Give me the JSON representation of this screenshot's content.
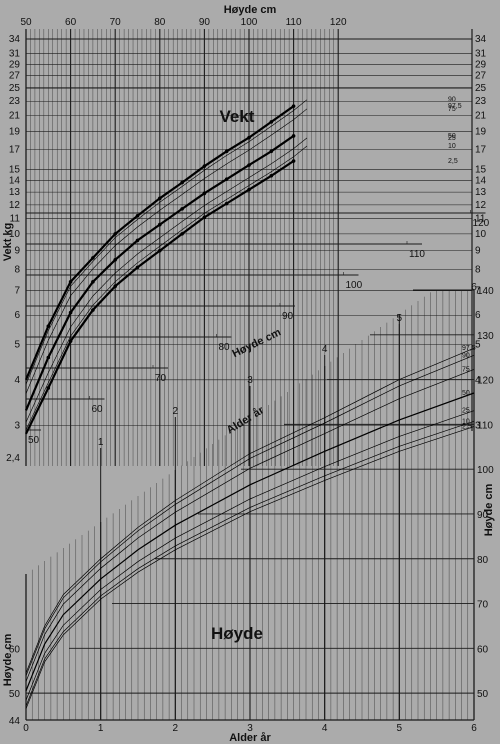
{
  "chart_data": [
    {
      "type": "line",
      "title": "Vekt",
      "top_axis_label": "Høyde cm",
      "top_axis_ticks": [
        "50",
        "60",
        "70",
        "80",
        "90",
        "100",
        "110",
        "120"
      ],
      "ylabel": "Vekt kg",
      "y_ticks_left": [
        "2,4",
        "3",
        "4",
        "5",
        "6",
        "7",
        "8",
        "9",
        "10",
        "11",
        "12",
        "13",
        "14",
        "15",
        "17",
        "19",
        "21",
        "23",
        "25",
        "27",
        "29",
        "31",
        "34"
      ],
      "y_ticks_right": [
        "3",
        "4",
        "5",
        "6",
        "7",
        "8",
        "9",
        "10",
        "11",
        "12",
        "13",
        "14",
        "15",
        "17",
        "19",
        "21",
        "23",
        "25",
        "27",
        "29",
        "31",
        "34"
      ],
      "diag_axis_label": "Høyde cm",
      "diag_axis_ticks": [
        "50",
        "60",
        "70",
        "80",
        "90",
        "100",
        "110",
        "120"
      ],
      "percentiles": [
        "97,5",
        "90",
        "75",
        "50",
        "25",
        "10",
        "2,5"
      ],
      "x": [
        50,
        55,
        60,
        65,
        70,
        75,
        80,
        85,
        90,
        95,
        100,
        105,
        110
      ],
      "series": [
        {
          "name": "97,5",
          "values": [
            4.0,
            5.6,
            7.4,
            8.6,
            10.0,
            11.2,
            12.5,
            13.8,
            15.3,
            16.8,
            18.3,
            20.2,
            22.3
          ]
        },
        {
          "name": "50",
          "values": [
            3.3,
            4.6,
            6.1,
            7.4,
            8.5,
            9.6,
            10.6,
            11.7,
            12.9,
            14.1,
            15.4,
            16.8,
            18.5
          ]
        },
        {
          "name": "2,5",
          "values": [
            2.85,
            3.8,
            5.1,
            6.2,
            7.2,
            8.1,
            9.0,
            10.0,
            11.1,
            12.1,
            13.2,
            14.4,
            15.8
          ]
        }
      ]
    },
    {
      "type": "line",
      "title": "Høyde",
      "xlabel": "Alder år",
      "x_ticks": [
        "0",
        "1",
        "2",
        "3",
        "4",
        "5",
        "6"
      ],
      "diag_axis_label": "Alder år",
      "diag_axis_ticks": [
        "1",
        "2",
        "3",
        "4",
        "5",
        "6"
      ],
      "ylabel": "Høyde cm",
      "y_ticks_left": [
        "44",
        "50",
        "60"
      ],
      "y_ticks_right": [
        "50",
        "60",
        "70",
        "80",
        "90",
        "100",
        "110",
        "120",
        "130",
        "140"
      ],
      "percentiles": [
        "97,5",
        "90",
        "75",
        "50",
        "25",
        "10",
        "2,5"
      ],
      "x": [
        0,
        0.25,
        0.5,
        1,
        1.5,
        2,
        3,
        4,
        5,
        6
      ],
      "series": [
        {
          "name": "97,5",
          "values": [
            54.5,
            65,
            72,
            80,
            87,
            93,
            103.5,
            111.5,
            120,
            127
          ]
        },
        {
          "name": "50",
          "values": [
            50.5,
            61,
            67.5,
            75.5,
            82,
            87.5,
            96.5,
            104,
            111,
            117
          ]
        },
        {
          "name": "2,5",
          "values": [
            46.5,
            57,
            63,
            71,
            77,
            82,
            90.5,
            97.5,
            104,
            109.5
          ]
        }
      ]
    }
  ]
}
